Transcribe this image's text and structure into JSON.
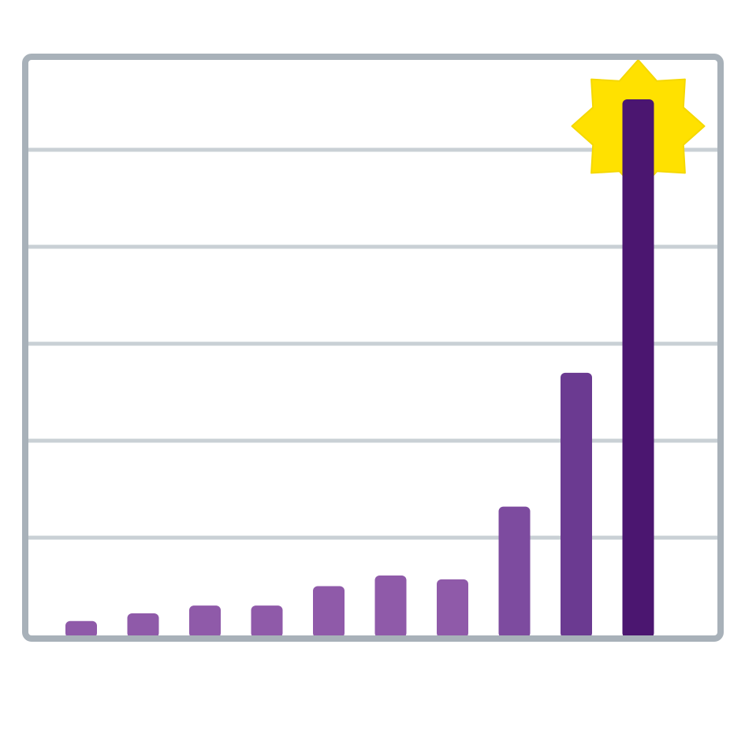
{
  "chart_data": {
    "type": "bar",
    "categories": [
      null,
      null,
      null,
      null,
      null,
      null,
      null,
      null,
      null,
      null
    ],
    "values": [
      0.14,
      0.22,
      0.3,
      0.3,
      0.5,
      0.61,
      0.57,
      1.32,
      2.7,
      5.52
    ],
    "colors": [
      "#8f5aa9",
      "#8f5aa9",
      "#8f5aa9",
      "#8f5aa9",
      "#8f5aa9",
      "#8f5aa9",
      "#8f5aa9",
      "#7d4b9f",
      "#6b3a91",
      "#4b1670"
    ],
    "ylim": [
      0,
      6
    ],
    "yticks": [
      1,
      2,
      3,
      4,
      5
    ],
    "grid": true
  }
}
